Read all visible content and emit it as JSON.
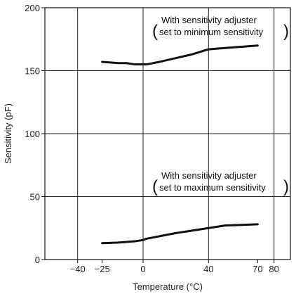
{
  "chart_data": {
    "type": "line",
    "title": "",
    "xlabel": "Temperature (°C)",
    "ylabel": "Sensitivity (pF)",
    "xlim": [
      -60,
      90
    ],
    "ylim": [
      0,
      200
    ],
    "x_ticks": [
      -40,
      -25,
      0,
      40,
      70,
      80
    ],
    "x_tick_labels": [
      "−40",
      "−25",
      "0",
      "40",
      "70",
      "80"
    ],
    "x_gridlines": [
      -40,
      0,
      40,
      80
    ],
    "y_ticks": [
      0,
      50,
      100,
      150,
      200
    ],
    "y_tick_labels": [
      "0",
      "50",
      "100",
      "150",
      "200"
    ],
    "grid": true,
    "series": [
      {
        "x": [
          -25,
          -15,
          -10,
          -5,
          0,
          2,
          10,
          20,
          30,
          40,
          50,
          60,
          70
        ],
        "y": [
          157,
          156,
          156,
          155,
          155,
          155,
          157,
          160,
          163,
          167,
          168,
          169,
          170
        ],
        "color": "#111111"
      },
      {
        "x": [
          -25,
          -15,
          -5,
          0,
          2,
          10,
          20,
          30,
          40,
          50,
          60,
          70
        ],
        "y": [
          13,
          13.5,
          14.5,
          15.5,
          16.5,
          18.5,
          21,
          23,
          25,
          27,
          27.5,
          28
        ],
        "color": "#111111"
      }
    ],
    "annotations": [
      {
        "id": "max",
        "lines": [
          "With sensitivity adjuster",
          "set to minimum sensitivity"
        ]
      },
      {
        "id": "min",
        "lines": [
          "With sensitivity adjuster",
          "set to maximum sensitivity"
        ]
      }
    ]
  }
}
